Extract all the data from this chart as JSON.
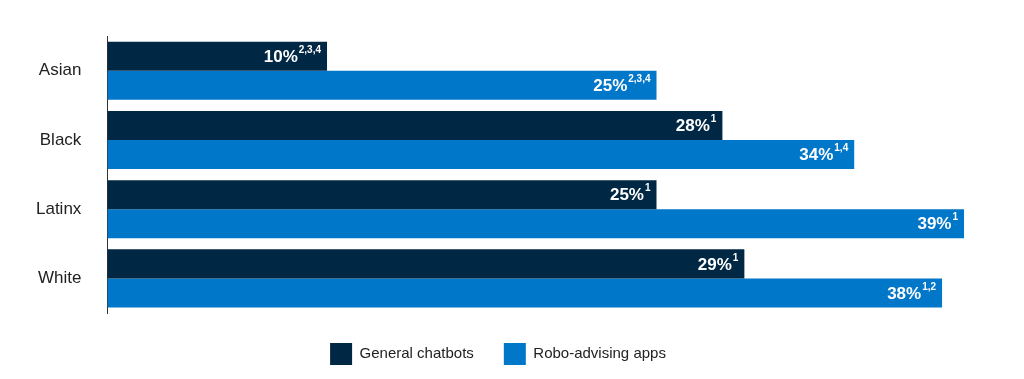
{
  "chart_data": {
    "type": "bar",
    "orientation": "horizontal",
    "categories": [
      "Asian",
      "Black",
      "Latinx",
      "White"
    ],
    "series": [
      {
        "name": "General chatbots",
        "color": "#002845",
        "values": [
          10,
          28,
          25,
          29
        ],
        "value_labels": [
          "10%$^{2,3,4}$",
          "28%$^{1}$",
          "25%$^{1}$",
          "29%$^{1}$"
        ]
      },
      {
        "name": "Robo-advising apps",
        "color": "#0077c8",
        "values": [
          25,
          34,
          39,
          38
        ],
        "value_labels": [
          "25%$^{2,3,4}$",
          "34%$^{1,4}$",
          "39%$^{1}$",
          "38%$^{1,2}$"
        ]
      }
    ],
    "legend": "bottom",
    "tick_labels": "y"
  }
}
